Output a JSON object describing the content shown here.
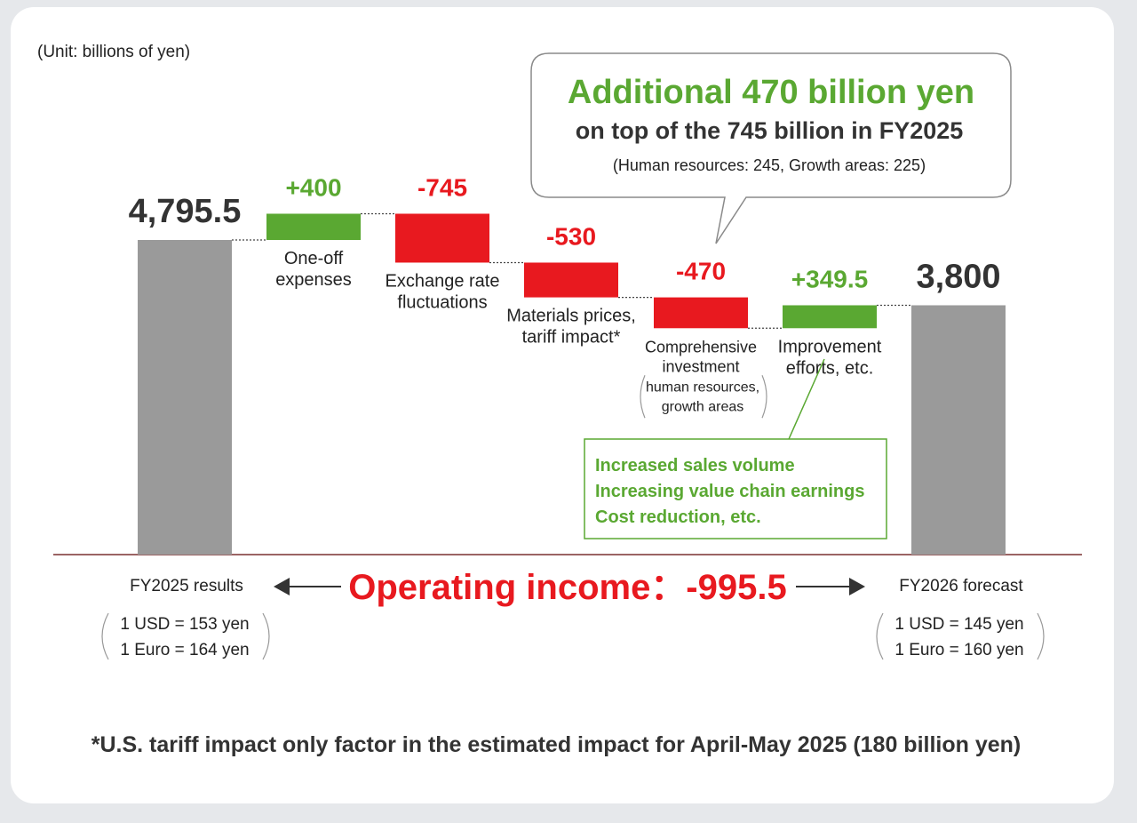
{
  "unit_note": "(Unit: billions of yen)",
  "callout": {
    "headline": "Additional 470 billion yen",
    "subline": "on top of the 745 billion in FY2025",
    "detail": "(Human resources: 245, Growth areas: 225)"
  },
  "chart_data": {
    "type": "bar",
    "subtype": "waterfall",
    "categories": [
      "FY2025 results",
      "One-off expenses",
      "Exchange rate fluctuations",
      "Materials prices, tariff impact*",
      "Comprehensive investment (human resources, growth areas)",
      "Improvement efforts, etc.",
      "FY2026 forecast"
    ],
    "start": {
      "label": "FY2025 results",
      "value": 4795.5,
      "value_label": "4,795.5"
    },
    "steps": [
      {
        "label_lines": [
          "One-off",
          "expenses"
        ],
        "delta": 400,
        "value_label": "+400",
        "color": "#5aa832"
      },
      {
        "label_lines": [
          "Exchange rate",
          "fluctuations"
        ],
        "delta": -745,
        "value_label": "-745",
        "color": "#e8191f"
      },
      {
        "label_lines": [
          "Materials prices,",
          "tariff impact*"
        ],
        "delta": -530,
        "value_label": "-530",
        "color": "#e8191f"
      },
      {
        "label_lines": [
          "Comprehensive",
          "investment"
        ],
        "sub_lines": [
          "human resources,",
          "growth areas"
        ],
        "delta": -470,
        "value_label": "-470",
        "color": "#e8191f"
      },
      {
        "label_lines": [
          "Improvement",
          "efforts, etc."
        ],
        "delta": 349.5,
        "value_label": "+349.5",
        "color": "#5aa832"
      }
    ],
    "end": {
      "label": "FY2026 forecast",
      "value": 3800,
      "value_label": "3,800"
    },
    "total_bar_color": "#9a9a9a",
    "positive_color": "#5aa832",
    "negative_color": "#e8191f",
    "note_lines": [
      "Increased sales volume",
      "Increasing value chain earnings",
      "Cost reduction, etc."
    ]
  },
  "operating_income_label": "Operating income：-995.5",
  "fx_fy2025": [
    "1 USD = 153 yen",
    "1 Euro = 164 yen"
  ],
  "fx_fy2026": [
    "1 USD = 145 yen",
    "1 Euro = 160 yen"
  ],
  "footnote": "*U.S. tariff impact only factor in the estimated impact for April-May 2025 (180 billion yen)"
}
